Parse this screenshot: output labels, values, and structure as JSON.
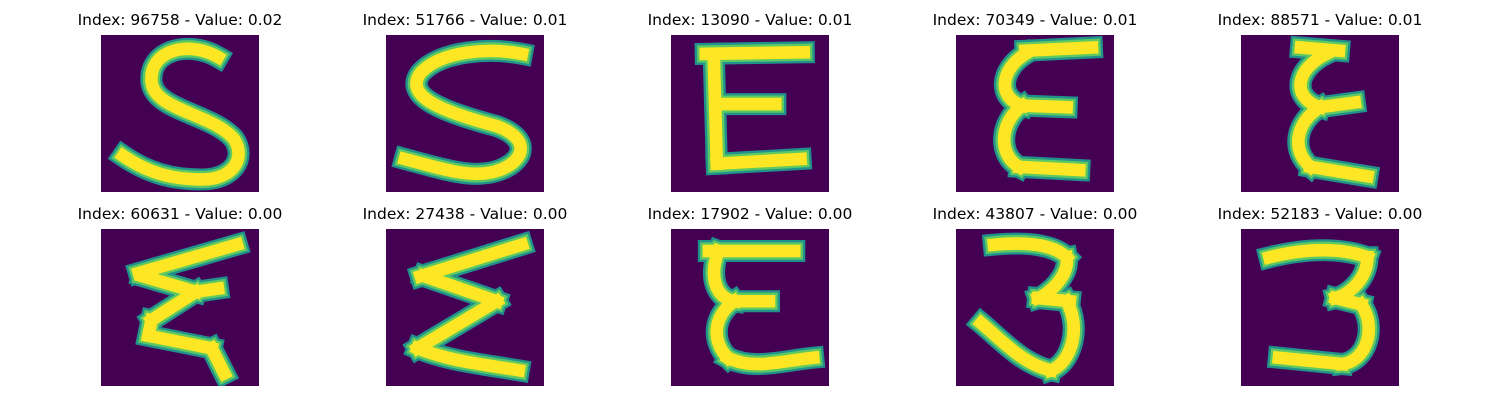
{
  "colors": {
    "background": "#440154",
    "edge": "#21918c",
    "mid": "#5ec962",
    "core": "#fde725"
  },
  "panels": [
    {
      "title": "Index: 96758 - Value: 0.02",
      "index": 96758,
      "value": 0.02,
      "glyph": "S",
      "glyph_icon": "handwritten-5-icon"
    },
    {
      "title": "Index: 51766 - Value: 0.01",
      "index": 51766,
      "value": 0.01,
      "glyph": "S",
      "glyph_icon": "handwritten-5-icon"
    },
    {
      "title": "Index: 13090 - Value: 0.01",
      "index": 13090,
      "value": 0.01,
      "glyph": "E",
      "glyph_icon": "handwritten-E-icon"
    },
    {
      "title": "Index: 70349 - Value: 0.01",
      "index": 70349,
      "value": 0.01,
      "glyph": "E",
      "glyph_icon": "handwritten-epsilon-icon"
    },
    {
      "title": "Index: 88571 - Value: 0.01",
      "index": 88571,
      "value": 0.01,
      "glyph": "E",
      "glyph_icon": "handwritten-epsilon-icon"
    },
    {
      "title": "Index: 60631 - Value: 0.00",
      "index": 60631,
      "value": 0.0,
      "glyph": "Z",
      "glyph_icon": "handwritten-sigma-icon"
    },
    {
      "title": "Index: 27438 - Value: 0.00",
      "index": 27438,
      "value": 0.0,
      "glyph": "Z",
      "glyph_icon": "handwritten-sigma-icon"
    },
    {
      "title": "Index: 17902 - Value: 0.00",
      "index": 17902,
      "value": 0.0,
      "glyph": "E",
      "glyph_icon": "handwritten-E-icon"
    },
    {
      "title": "Index: 43807 - Value: 0.00",
      "index": 43807,
      "value": 0.0,
      "glyph": "3",
      "glyph_icon": "handwritten-3-icon"
    },
    {
      "title": "Index: 52183 - Value: 0.00",
      "index": 52183,
      "value": 0.0,
      "glyph": "3",
      "glyph_icon": "handwritten-3-icon"
    }
  ]
}
